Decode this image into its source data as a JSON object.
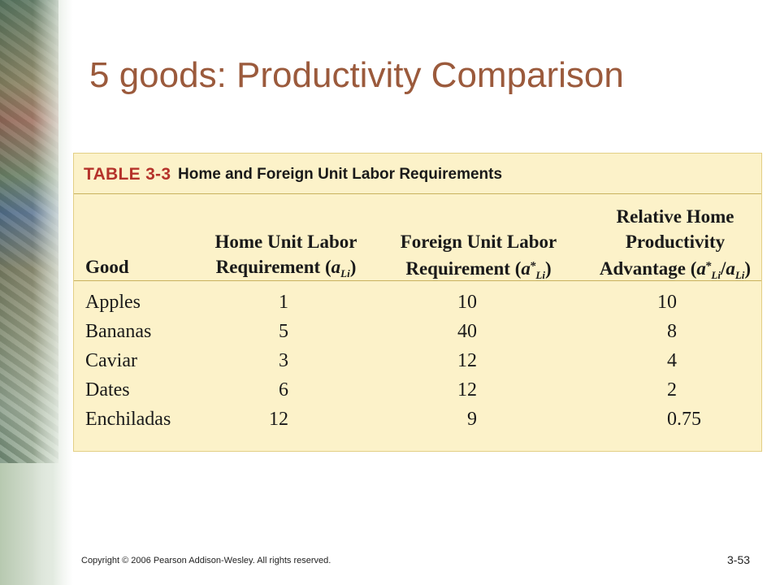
{
  "slide": {
    "title": "5 goods: Productivity Comparison",
    "copyright": "Copyright © 2006 Pearson Addison-Wesley. All rights reserved.",
    "slide_number": "3-53"
  },
  "table": {
    "label": "TABLE 3-3",
    "description": "Home and Foreign Unit Labor Requirements",
    "headers": {
      "good": "Good",
      "home": {
        "line1": "Home Unit Labor",
        "line2": "Requirement (",
        "symbol": "a",
        "sub": "Li",
        "close": ")"
      },
      "foreign": {
        "line1": "Foreign Unit Labor",
        "line2": "Requirement (",
        "symbol": "a",
        "sup": "*",
        "sub": "Li",
        "close": ")"
      },
      "relative": {
        "line1": "Relative Home",
        "line2": "Productivity",
        "line3": "Advantage (",
        "symbol1": "a",
        "sup1": "*",
        "sub1": "Li",
        "slash": "/",
        "symbol2": "a",
        "sub2": "Li",
        "close": ")"
      }
    },
    "rows": [
      {
        "good": "Apples",
        "home": "1",
        "foreign": "10",
        "relative": "10"
      },
      {
        "good": "Bananas",
        "home": "5",
        "foreign": "40",
        "relative": "8"
      },
      {
        "good": "Caviar",
        "home": "3",
        "foreign": "12",
        "relative": "4"
      },
      {
        "good": "Dates",
        "home": "6",
        "foreign": "12",
        "relative": "2"
      },
      {
        "good": "Enchiladas",
        "home": "12",
        "foreign": "9",
        "relative": "0.75"
      }
    ]
  },
  "colors": {
    "title": "#9b5a3c",
    "table_background": "#fcf2c9",
    "table_label": "#b5332b",
    "rule": "#c9b25e"
  },
  "icons": [
    "photo-collage-sidebar"
  ]
}
